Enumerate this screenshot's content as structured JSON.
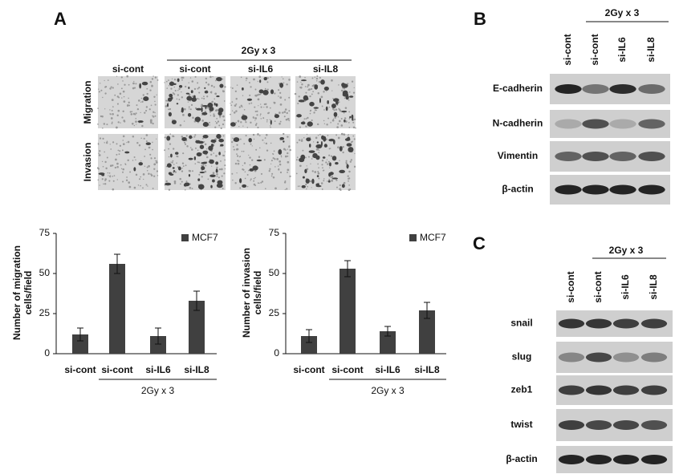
{
  "panel_labels": [
    "A",
    "B",
    "C"
  ],
  "panel_a": {
    "group": "2Gy x 3",
    "columns": [
      "si-cont",
      "si-cont",
      "si-IL6",
      "si-IL8"
    ],
    "rows": [
      "Migration",
      "Invasion"
    ]
  },
  "chart_data": [
    {
      "type": "bar",
      "ylabel": [
        "Number of migration",
        "cells/field"
      ],
      "categories": [
        "si-cont",
        "si-cont",
        "si-IL6",
        "si-IL8"
      ],
      "series": [
        {
          "name": "MCF7",
          "color": "#404040",
          "values": [
            12,
            56,
            11,
            33
          ],
          "errors": [
            4,
            6,
            5,
            6
          ]
        }
      ],
      "ylim": [
        0,
        75
      ],
      "yticks": [
        0,
        25,
        50,
        75
      ],
      "group_label": "2Gy x 3"
    },
    {
      "type": "bar",
      "ylabel": [
        "Number of invasion",
        "cells/field"
      ],
      "categories": [
        "si-cont",
        "si-cont",
        "si-IL6",
        "si-IL8"
      ],
      "series": [
        {
          "name": "MCF7",
          "color": "#404040",
          "values": [
            11,
            53,
            14,
            27
          ],
          "errors": [
            4,
            5,
            3,
            5
          ]
        }
      ],
      "ylim": [
        0,
        75
      ],
      "yticks": [
        0,
        25,
        50,
        75
      ],
      "group_label": "2Gy x 3"
    }
  ],
  "panel_b": {
    "group": "2Gy x 3",
    "lanes": [
      "si-cont",
      "si-cont",
      "si-IL6",
      "si-IL8"
    ],
    "rows": [
      "E-cadherin",
      "N-cadherin",
      "Vimentin",
      "β-actin"
    ]
  },
  "panel_c": {
    "group": "2Gy x 3",
    "lanes": [
      "si-cont",
      "si-cont",
      "si-IL6",
      "si-IL8"
    ],
    "rows": [
      "snail",
      "slug",
      "zeb1",
      "twist",
      "β-actin"
    ]
  }
}
